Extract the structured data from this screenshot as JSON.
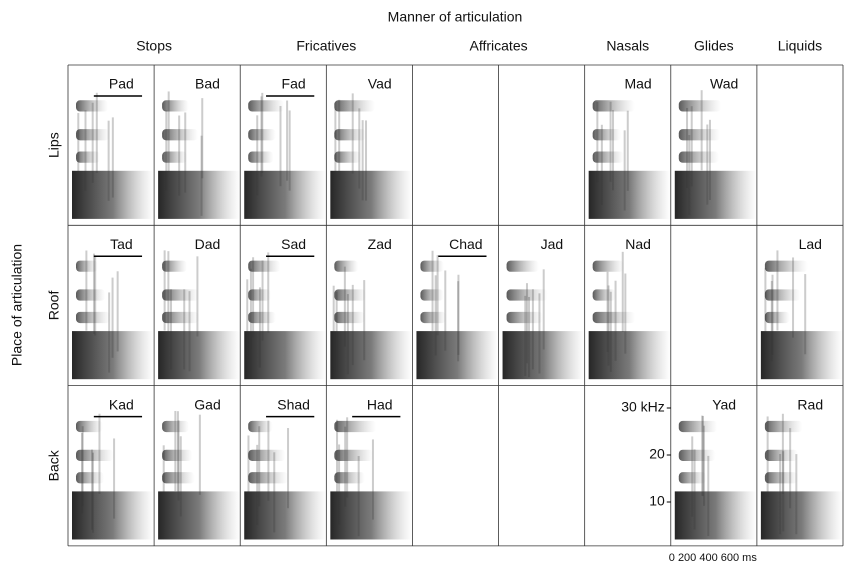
{
  "title": "Manner of articulation",
  "row_axis_label": "Place of articulation",
  "columns": [
    "Stops",
    "Fricatives",
    "Affricates",
    "Nasals",
    "Glides",
    "Liquids"
  ],
  "rows": [
    {
      "label": "Lips",
      "cells": [
        {
          "word": "Pad",
          "underline": true
        },
        {
          "word": "Bad",
          "underline": false
        },
        {
          "word": "Fad",
          "underline": true
        },
        {
          "word": "Vad",
          "underline": false
        },
        null,
        null,
        {
          "word": "Mad",
          "underline": false
        },
        {
          "word": "Wad",
          "underline": false
        },
        null
      ]
    },
    {
      "label": "Roof",
      "cells": [
        {
          "word": "Tad",
          "underline": true
        },
        {
          "word": "Dad",
          "underline": false
        },
        {
          "word": "Sad",
          "underline": true
        },
        {
          "word": "Zad",
          "underline": false
        },
        {
          "word": "Chad",
          "underline": true
        },
        {
          "word": "Jad",
          "underline": false
        },
        {
          "word": "Nad",
          "underline": false
        },
        null,
        {
          "word": "Lad",
          "underline": false
        }
      ]
    },
    {
      "label": "Back",
      "cells": [
        {
          "word": "Kad",
          "underline": true
        },
        {
          "word": "Gad",
          "underline": false
        },
        {
          "word": "Shad",
          "underline": true
        },
        {
          "word": "Had",
          "underline": true
        },
        null,
        null,
        null,
        {
          "word": "Yad",
          "underline": false
        },
        {
          "word": "Rad",
          "underline": false
        }
      ]
    }
  ],
  "frequency_axis": [
    "30 kHz",
    "20",
    "10"
  ],
  "time_axis": "0 200 400 600 ms"
}
